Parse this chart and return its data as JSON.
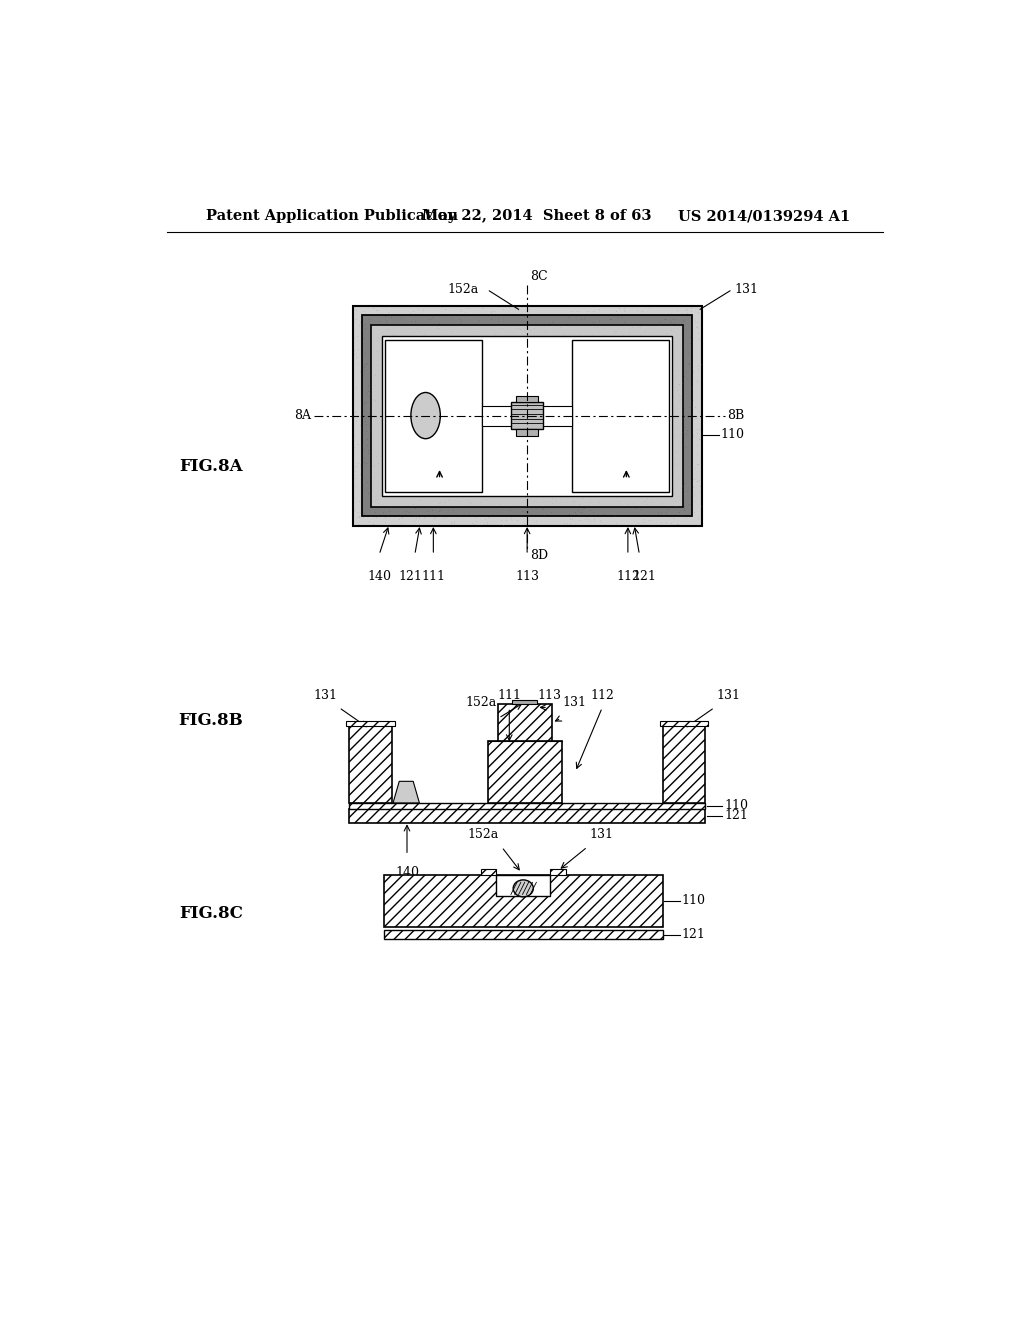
{
  "bg_color": "#ffffff",
  "header_text1": "Patent Application Publication",
  "header_text2": "May 22, 2014  Sheet 8 of 63",
  "header_text3": "US 2014/0139294 A1"
}
